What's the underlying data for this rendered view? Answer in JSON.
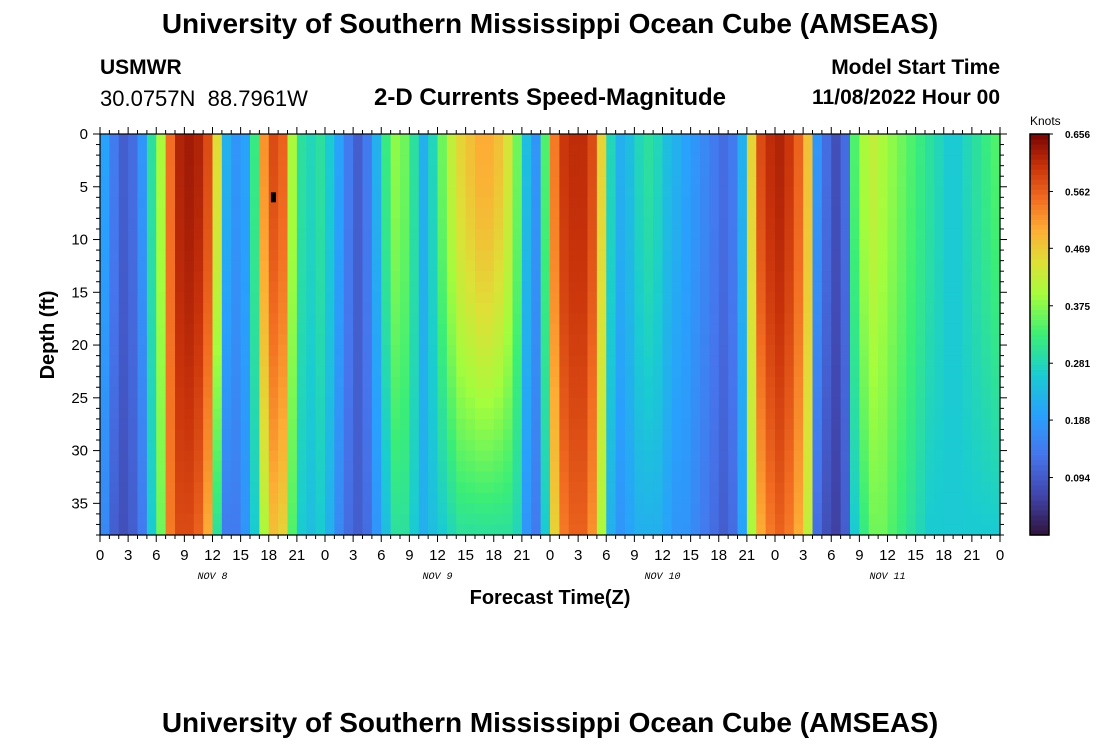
{
  "header": {
    "title": "University of Southern Mississippi Ocean Cube (AMSEAS)",
    "station": "USMWR",
    "coordinates": "30.0757N  88.7961W",
    "chart_title": "2-D Currents Speed-Magnitude",
    "model_start_label": "Model Start Time",
    "model_start_value": "11/08/2022 Hour 00"
  },
  "footer": {
    "title": "University of Southern Mississippi Ocean Cube (AMSEAS)"
  },
  "chart_data": {
    "type": "heatmap",
    "title": "2-D Currents Speed-Magnitude",
    "xlabel": "Forecast Time(Z)",
    "ylabel": "Depth (ft)",
    "colorbar_label": "Knots",
    "x_tick_labels": [
      "0",
      "3",
      "6",
      "9",
      "12",
      "15",
      "18",
      "21",
      "0",
      "3",
      "6",
      "9",
      "12",
      "15",
      "18",
      "21",
      "0",
      "3",
      "6",
      "9",
      "12",
      "15",
      "18",
      "21",
      "0",
      "3",
      "6",
      "9",
      "12",
      "15",
      "18",
      "21",
      "0"
    ],
    "x_range_hours": [
      0,
      96
    ],
    "day_labels": [
      {
        "label": "NOV 8",
        "hour": 12
      },
      {
        "label": "NOV 9",
        "hour": 36
      },
      {
        "label": "NOV 10",
        "hour": 60
      },
      {
        "label": "NOV 11",
        "hour": 84
      }
    ],
    "y_ticks": [
      0,
      5,
      10,
      15,
      20,
      25,
      30,
      35
    ],
    "y_range_ft": [
      0,
      38
    ],
    "colorbar_ticks": [
      0.656,
      0.562,
      0.469,
      0.375,
      0.281,
      0.188,
      0.094
    ],
    "colorbar_range": [
      0.0,
      0.656
    ],
    "speed_profile": {
      "hours": [
        0,
        1,
        2,
        3,
        4,
        5,
        6,
        7,
        8,
        9,
        10,
        11,
        12,
        13,
        14,
        15,
        16,
        17,
        18,
        19,
        20,
        21,
        22,
        23,
        24,
        25,
        26,
        27,
        28,
        29,
        30,
        31,
        32,
        33,
        34,
        35,
        36,
        37,
        38,
        39,
        40,
        41,
        42,
        43,
        44,
        45,
        46,
        47,
        48,
        49,
        50,
        51,
        52,
        53,
        54,
        55,
        56,
        57,
        58,
        59,
        60,
        61,
        62,
        63,
        64,
        65,
        66,
        67,
        68,
        69,
        70,
        71,
        72,
        73,
        74,
        75,
        76,
        77,
        78,
        79,
        80,
        81,
        82,
        83,
        84,
        85,
        86,
        87,
        88,
        89,
        90,
        91,
        92,
        93,
        94,
        95,
        96
      ],
      "surface": [
        0.2,
        0.14,
        0.1,
        0.12,
        0.18,
        0.3,
        0.4,
        0.55,
        0.62,
        0.63,
        0.62,
        0.58,
        0.45,
        0.22,
        0.18,
        0.2,
        0.32,
        0.52,
        0.58,
        0.56,
        0.4,
        0.3,
        0.28,
        0.3,
        0.26,
        0.2,
        0.14,
        0.1,
        0.14,
        0.22,
        0.32,
        0.38,
        0.36,
        0.3,
        0.22,
        0.28,
        0.36,
        0.42,
        0.46,
        0.48,
        0.5,
        0.5,
        0.48,
        0.44,
        0.36,
        0.24,
        0.18,
        0.34,
        0.54,
        0.6,
        0.61,
        0.61,
        0.58,
        0.46,
        0.28,
        0.22,
        0.24,
        0.28,
        0.3,
        0.28,
        0.24,
        0.22,
        0.2,
        0.18,
        0.16,
        0.14,
        0.12,
        0.14,
        0.22,
        0.46,
        0.58,
        0.61,
        0.62,
        0.6,
        0.56,
        0.48,
        0.18,
        0.12,
        0.08,
        0.12,
        0.34,
        0.4,
        0.42,
        0.4,
        0.38,
        0.36,
        0.34,
        0.32,
        0.3,
        0.28,
        0.26,
        0.26,
        0.28,
        0.3,
        0.32,
        0.34,
        0.36
      ],
      "bottom": [
        0.16,
        0.1,
        0.08,
        0.1,
        0.14,
        0.26,
        0.36,
        0.54,
        0.58,
        0.58,
        0.56,
        0.5,
        0.3,
        0.14,
        0.14,
        0.18,
        0.26,
        0.4,
        0.48,
        0.46,
        0.34,
        0.26,
        0.24,
        0.26,
        0.22,
        0.16,
        0.12,
        0.1,
        0.12,
        0.18,
        0.24,
        0.3,
        0.3,
        0.26,
        0.22,
        0.24,
        0.26,
        0.28,
        0.3,
        0.3,
        0.3,
        0.3,
        0.3,
        0.3,
        0.28,
        0.18,
        0.14,
        0.26,
        0.46,
        0.54,
        0.56,
        0.56,
        0.52,
        0.4,
        0.22,
        0.18,
        0.2,
        0.22,
        0.22,
        0.22,
        0.2,
        0.18,
        0.18,
        0.16,
        0.14,
        0.12,
        0.1,
        0.12,
        0.2,
        0.4,
        0.5,
        0.54,
        0.56,
        0.54,
        0.5,
        0.42,
        0.12,
        0.08,
        0.06,
        0.1,
        0.26,
        0.32,
        0.36,
        0.36,
        0.34,
        0.32,
        0.3,
        0.28,
        0.26,
        0.26,
        0.26,
        0.26,
        0.26,
        0.26,
        0.26,
        0.26,
        0.26
      ]
    },
    "marker": {
      "hour": 18.5,
      "depth_ft": 6
    }
  }
}
